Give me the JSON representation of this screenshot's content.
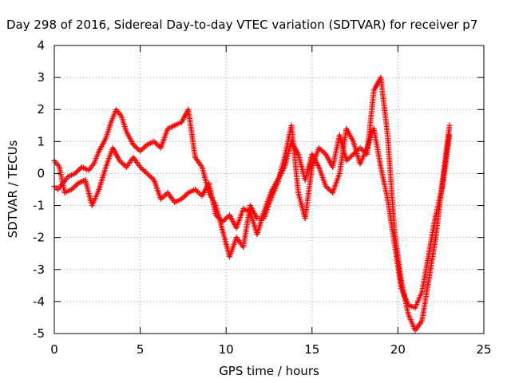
{
  "chart_data": {
    "type": "scatter",
    "title": "Day 298 of 2016, Sidereal Day-to-day VTEC variation (SDTVAR) for receiver p7",
    "xlabel": "GPS time / hours",
    "ylabel": "SDTVAR / TECUs",
    "xlim": [
      0,
      25
    ],
    "ylim": [
      -5,
      4
    ],
    "xticks": [
      "0",
      "5",
      "10",
      "15",
      "20",
      "25"
    ],
    "yticks": [
      "4",
      "3",
      "2",
      "1",
      "0",
      "-1",
      "-2",
      "-3",
      "-4",
      "-5"
    ],
    "grid": true,
    "marker": "+",
    "color": "#ff0000",
    "series": [
      {
        "x": [
          0.0,
          0.2,
          0.5,
          0.8,
          1.2,
          1.6,
          2.0,
          2.3,
          2.6,
          3.0,
          3.3,
          3.6,
          3.9,
          4.2,
          4.6,
          5.0,
          5.4,
          5.8,
          6.2,
          6.6,
          7.0,
          7.4,
          7.8,
          8.2,
          8.6,
          9.0,
          9.4,
          9.8,
          10.2,
          10.6,
          11.0,
          11.4,
          11.8,
          12.2,
          12.6,
          13.0,
          13.4,
          13.8,
          14.2,
          14.6,
          15.0,
          15.4,
          15.8,
          16.2,
          16.6,
          17.0,
          17.4,
          17.8,
          18.2,
          18.6,
          19.0,
          19.4,
          19.8,
          20.2,
          20.6,
          21.0,
          21.4,
          21.8,
          22.2,
          22.6,
          23.0
        ],
        "y": [
          -0.4,
          -0.5,
          -0.3,
          -0.1,
          0.0,
          0.2,
          0.1,
          0.3,
          0.7,
          1.1,
          1.6,
          2.0,
          1.8,
          1.3,
          0.9,
          0.7,
          0.9,
          1.0,
          0.8,
          1.4,
          1.5,
          1.6,
          2.0,
          0.5,
          0.2,
          -0.6,
          -1.0,
          -1.8,
          -2.6,
          -2.0,
          -2.3,
          -1.0,
          -1.4,
          -1.4,
          -0.8,
          -0.3,
          0.5,
          1.5,
          -0.6,
          -1.4,
          0.2,
          0.8,
          0.6,
          0.2,
          1.2,
          0.4,
          0.6,
          0.8,
          0.6,
          2.6,
          3.0,
          1.2,
          -1.8,
          -3.4,
          -4.4,
          -4.9,
          -4.6,
          -3.3,
          -2.0,
          -0.2,
          1.5
        ]
      },
      {
        "x": [
          0.0,
          0.3,
          0.6,
          1.0,
          1.4,
          1.8,
          2.2,
          2.6,
          3.0,
          3.4,
          3.8,
          4.2,
          4.6,
          5.0,
          5.4,
          5.8,
          6.2,
          6.6,
          7.0,
          7.4,
          7.8,
          8.2,
          8.6,
          9.0,
          9.4,
          9.8,
          10.2,
          10.6,
          11.0,
          11.4,
          11.8,
          12.2,
          12.6,
          13.0,
          13.4,
          13.8,
          14.2,
          14.6,
          15.0,
          15.4,
          15.8,
          16.2,
          16.6,
          17.0,
          17.4,
          17.8,
          18.2,
          18.6,
          19.0,
          19.4,
          19.8,
          20.2,
          20.6,
          21.0,
          21.4,
          21.8,
          22.2,
          22.6,
          23.0
        ],
        "y": [
          0.4,
          0.2,
          -0.6,
          -0.5,
          -0.3,
          -0.2,
          -1.0,
          -0.5,
          0.2,
          0.8,
          0.4,
          0.2,
          0.5,
          0.2,
          0.0,
          -0.2,
          -0.8,
          -0.6,
          -0.9,
          -0.8,
          -0.6,
          -0.5,
          -0.7,
          -0.3,
          -1.3,
          -1.5,
          -1.3,
          -1.7,
          -1.1,
          -1.2,
          -1.9,
          -1.2,
          -0.6,
          -0.2,
          0.2,
          1.0,
          0.6,
          -0.2,
          0.6,
          0.2,
          -0.4,
          -0.6,
          0.0,
          1.4,
          1.0,
          0.3,
          0.8,
          1.4,
          0.2,
          -0.8,
          -2.2,
          -3.6,
          -4.1,
          -4.2,
          -3.7,
          -2.5,
          -1.3,
          -0.4,
          1.2
        ]
      }
    ]
  }
}
